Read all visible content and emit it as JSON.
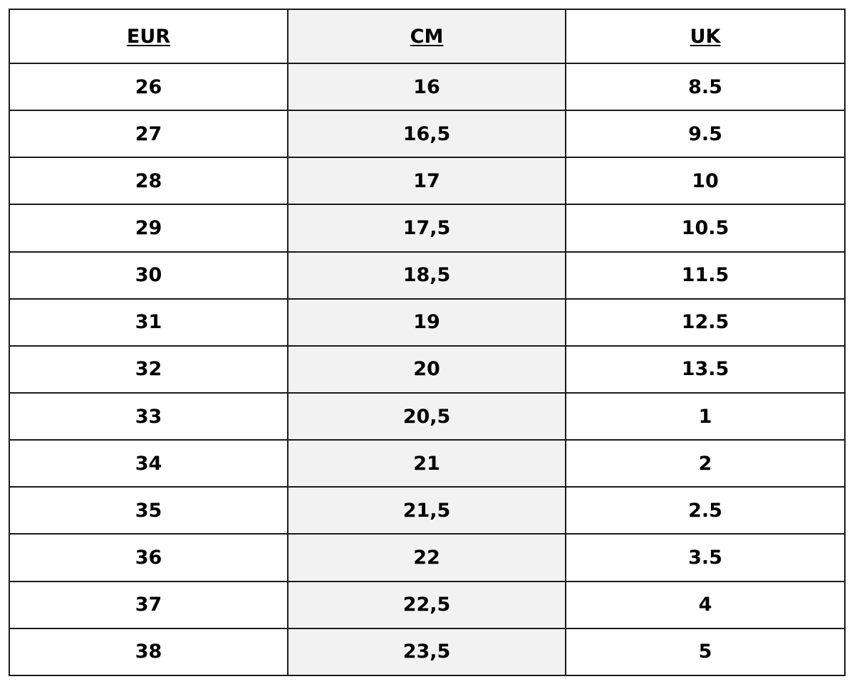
{
  "table": {
    "headers": [
      "EUR",
      "CM",
      "UK"
    ],
    "shaded_column_color": "#f2f2f2",
    "rows": [
      [
        "26",
        "16",
        "8.5"
      ],
      [
        "27",
        "16,5",
        "9.5"
      ],
      [
        "28",
        "17",
        "10"
      ],
      [
        "29",
        "17,5",
        "10.5"
      ],
      [
        "30",
        "18,5",
        "11.5"
      ],
      [
        "31",
        "19",
        "12.5"
      ],
      [
        "32",
        "20",
        "13.5"
      ],
      [
        "33",
        "20,5",
        "1"
      ],
      [
        "34",
        "21",
        "2"
      ],
      [
        "35",
        "21,5",
        "2.5"
      ],
      [
        "36",
        "22",
        "3.5"
      ],
      [
        "37",
        "22,5",
        "4"
      ],
      [
        "38",
        "23,5",
        "5"
      ]
    ]
  }
}
